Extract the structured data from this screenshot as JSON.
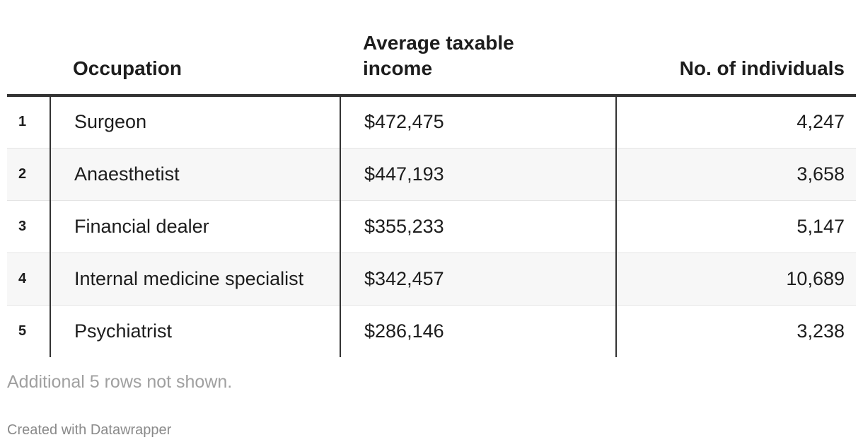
{
  "chart_data": {
    "type": "table",
    "columns": [
      "",
      "Occupation",
      "Average taxable income",
      "No. of individuals"
    ],
    "header_lines": {
      "income": [
        "Average taxable",
        "income"
      ]
    },
    "rows": [
      {
        "rank": "1",
        "occupation": "Surgeon",
        "income": "$472,475",
        "individuals": "4,247"
      },
      {
        "rank": "2",
        "occupation": "Anaesthetist",
        "income": "$447,193",
        "individuals": "3,658"
      },
      {
        "rank": "3",
        "occupation": "Financial dealer",
        "income": "$355,233",
        "individuals": "5,147"
      },
      {
        "rank": "4",
        "occupation": "Internal medicine specialist",
        "income": "$342,457",
        "individuals": "10,689"
      },
      {
        "rank": "5",
        "occupation": "Psychiatrist",
        "income": "$286,146",
        "individuals": "3,238"
      }
    ],
    "note": "Additional 5 rows not shown.",
    "credit": "Created with Datawrapper"
  },
  "colors": {
    "text": "#1d1d1d",
    "rule": "#333333",
    "stripe": "#f7f7f7",
    "muted": "#a0a0a0"
  }
}
